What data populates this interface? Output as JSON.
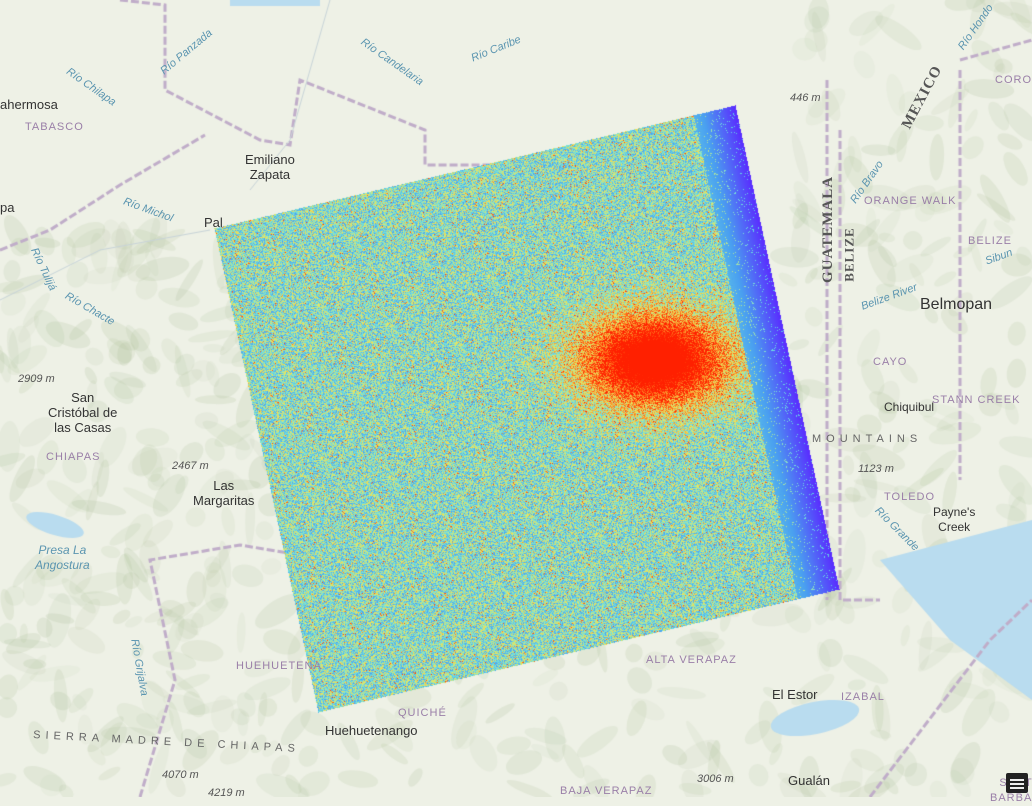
{
  "map": {
    "labels": {
      "villahermosa": "ahermosa",
      "tabasco": "TABASCO",
      "rio_chilapa": "Río Chilapa",
      "rio_panzada": "Río Panzada",
      "rio_candelaria": "Río Candelaria",
      "rio_caribe": "Río Caribe",
      "emiliano_zapata": "Emiliano\nZapata",
      "rio_michol": "Río Michol",
      "palenque": "Pal",
      "pa": "pa",
      "rio_tulija": "Río Tulijá",
      "rio_chacte": "Río Chacte",
      "elev_2909": "2909 m",
      "san_cristobal": "San\nCristóbal de\nlas Casas",
      "chiapas": "CHIAPAS",
      "elev_2467": "2467 m",
      "las_margaritas": "Las\nMargaritas",
      "presa_la_angostura": "Presa La\nAngostura",
      "rio_grijalva": "Río Grijalva",
      "huehuetenango_state": "HUEHUETENA",
      "huehuetenango": "Huehuetenango",
      "quiche": "QUICHÉ",
      "baja_verapaz": "BAJA VERAPAZ",
      "sierra_madre": "SIERRA MADRE DE CHIAPAS",
      "elev_4070": "4070 m",
      "elev_4219": "4219 m",
      "elev_446": "446 m",
      "mexico": "MEXICO",
      "rio_hondo": "Río Hondo",
      "corozal": "COROZ",
      "guatemala": "GUATEMALA",
      "belize_country": "BELIZE",
      "rio_bravo": "Río Bravo",
      "orange_walk": "ORANGE WALK",
      "belize_district": "BELIZE",
      "sibun": "Sibun",
      "belize_river": "Belize River",
      "belmopan": "Belmopan",
      "cayo": "CAYO",
      "chiquibul": "Chiquibul",
      "stann_creek": "STANN CREEK",
      "mountains": "MOUNTAINS",
      "elev_1123": "1123 m",
      "toledo": "TOLEDO",
      "paynes_creek": "Payne's\nCreek",
      "rio_grande": "Río Grande",
      "alta_verapaz": "ALTA VERAPAZ",
      "el_estor": "El Estor",
      "izabal": "IZABAL",
      "elev_3006": "3006 m",
      "gualan": "Gualán",
      "santa_barbara": "SANTA\nBARBARA"
    },
    "raster_colormap": [
      "#5a2bff",
      "#4aa0f0",
      "#6fe0e0",
      "#e8e860",
      "#ff8020",
      "#ff2000"
    ],
    "legend_icon": "legend-list-icon"
  }
}
